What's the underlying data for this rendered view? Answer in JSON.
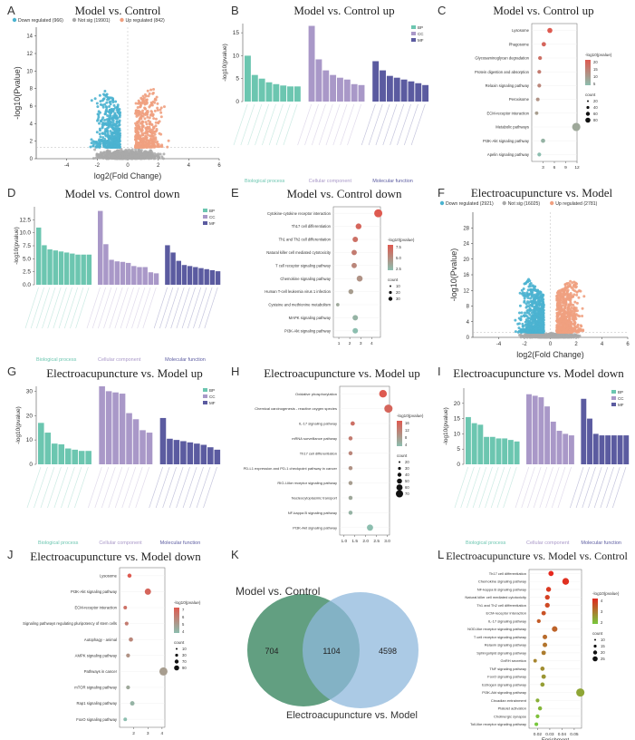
{
  "panels": {
    "A": {
      "letter": "A",
      "title": "Model vs. Control"
    },
    "B": {
      "letter": "B",
      "title": "Model vs. Control up"
    },
    "C": {
      "letter": "C",
      "title": "Model vs. Control up"
    },
    "D": {
      "letter": "D",
      "title": "Model vs. Control down"
    },
    "E": {
      "letter": "E",
      "title": "Model vs. Control down"
    },
    "F": {
      "letter": "F",
      "title": "Electroacupuncture vs. Model"
    },
    "G": {
      "letter": "G",
      "title": "Electroacupuncture vs. Model up"
    },
    "H": {
      "letter": "H",
      "title": "Electroacupuncture vs. Model up"
    },
    "I": {
      "letter": "I",
      "title": "Electroacupuncture vs. Model down"
    },
    "J": {
      "letter": "J",
      "title": "Electroacupuncture vs. Model down"
    },
    "K": {
      "letter": "K",
      "title": ""
    },
    "L": {
      "letter": "L",
      "title": "Electroacupuncture vs. Model vs. Control"
    }
  },
  "colors": {
    "down": "#4bb3d0",
    "notsig": "#a9a9a9",
    "up": "#f0a080",
    "bp": "#6cc6b0",
    "cc": "#a998c8",
    "mf": "#5b5ba0",
    "venn_left": "#5a9a7a",
    "venn_right": "#8fb8dc"
  },
  "chart_data": [
    {
      "id": "A",
      "type": "scatter",
      "subtype": "volcano",
      "legend": [
        "Down regulated (966)",
        "Not sig (19901)",
        "Up regulated (842)"
      ],
      "xlabel": "log2(Fold Change)",
      "ylabel": "-log10(Pvalue)",
      "xlim": [
        -6,
        6
      ],
      "ylim": [
        0,
        15
      ],
      "xticks": [
        "-4",
        "-2",
        "0",
        "2",
        "4",
        "6"
      ],
      "yticks": [
        "0",
        "2",
        "4",
        "6",
        "8",
        "10",
        "12",
        "14"
      ]
    },
    {
      "id": "B",
      "type": "bar",
      "ylabel": "-log10(pvalue)",
      "ylim": [
        0,
        17
      ],
      "yticks": [
        "0",
        "5",
        "10",
        "15"
      ],
      "legend": [
        "BP",
        "CC",
        "MF"
      ],
      "groups": [
        "Biological process",
        "Cellular component",
        "Molecular function"
      ],
      "series": [
        {
          "name": "BP",
          "values": [
            10,
            5.8,
            5,
            4.2,
            3.8,
            3.5,
            3.3,
            3.3
          ]
        },
        {
          "name": "CC",
          "values": [
            16.5,
            9.2,
            6.8,
            5.8,
            5.2,
            4.8,
            3.8,
            3.6
          ]
        },
        {
          "name": "MF",
          "values": [
            8.8,
            6.8,
            5.6,
            5.2,
            4.8,
            4.4,
            4,
            3.6
          ]
        }
      ]
    },
    {
      "id": "C",
      "type": "scatter",
      "subtype": "bubble",
      "xticks": [
        "3",
        "6",
        "9",
        "12"
      ],
      "xlim": [
        0,
        12
      ],
      "legend_title": "-log10(pvalue)",
      "legend_ticks": [
        "20",
        "15",
        "10",
        "5"
      ],
      "count_title": "count",
      "count_ticks": [
        "20",
        "40",
        "60",
        "80"
      ],
      "terms": [
        "Lysosome",
        "Phagosome",
        "Glycosaminoglycan degradation",
        "Protein digestion and absorption",
        "Relaxin signaling pathway",
        "Peroxisome",
        "ECM-receptor interaction",
        "Metabolic pathways",
        "PI3K-Akt signaling pathway",
        "Apelin signaling pathway"
      ],
      "x": [
        4.8,
        3.2,
        2.2,
        2,
        2,
        1.6,
        1.3,
        11.8,
        3,
        2
      ]
    },
    {
      "id": "D",
      "type": "bar",
      "ylabel": "-log10(pvalue)",
      "ylim": [
        0,
        15
      ],
      "yticks": [
        "0.0",
        "2.5",
        "5.0",
        "7.5",
        "10.0",
        "12.5"
      ],
      "legend": [
        "BP",
        "CC",
        "MF"
      ],
      "groups": [
        "Biological process",
        "Cellular component",
        "Molecular function"
      ],
      "series": [
        {
          "name": "BP",
          "values": [
            11,
            7.6,
            6.8,
            6.6,
            6.4,
            6.2,
            6,
            5.8,
            5.8,
            5.8
          ]
        },
        {
          "name": "CC",
          "values": [
            14.2,
            7.8,
            4.8,
            4.5,
            4.4,
            4.2,
            3.6,
            3.4,
            3.4,
            2.4,
            2.2
          ]
        },
        {
          "name": "MF",
          "values": [
            7.6,
            6.2,
            4.6,
            3.8,
            3.6,
            3.4,
            3.2,
            3,
            2.8,
            2.6
          ]
        }
      ]
    },
    {
      "id": "E",
      "type": "scatter",
      "subtype": "bubble",
      "xticks": [
        "1",
        "2",
        "3",
        "4"
      ],
      "xlim": [
        0.5,
        4.8
      ],
      "legend_title": "-log10(pvalue)",
      "legend_ticks": [
        "7.5",
        "5.0",
        "2.5"
      ],
      "count_title": "count",
      "count_ticks": [
        "10",
        "20",
        "30"
      ],
      "terms": [
        "Cytokine-cytokine receptor interaction",
        "Th17 cell differentiation",
        "Th1 and Th2 cell differentiation",
        "Natural killer cell mediated cytotoxicity",
        "T cell receptor signaling pathway",
        "Chemokine signaling pathway",
        "Human T-cell leukemia virus 1 infection",
        "Cysteine and methionine metabolism",
        "MAPK signaling pathway",
        "PI3K-Akt signaling pathway"
      ],
      "x": [
        4.6,
        2.8,
        2.5,
        2.4,
        2.4,
        2.9,
        2.1,
        0.9,
        2.5,
        2.5
      ]
    },
    {
      "id": "F",
      "type": "scatter",
      "subtype": "volcano",
      "legend": [
        "Down regulated (2921)",
        "Not sig (16025)",
        "Up regulated (2781)"
      ],
      "xlabel": "log2(Fold Change)",
      "ylabel": "-log10(Pvalue)",
      "xlim": [
        -6,
        6
      ],
      "ylim": [
        0,
        32
      ],
      "xticks": [
        "-4",
        "-2",
        "0",
        "2",
        "4",
        "6"
      ],
      "yticks": [
        "0",
        "4",
        "8",
        "12",
        "16",
        "20",
        "24",
        "28"
      ]
    },
    {
      "id": "G",
      "type": "bar",
      "ylabel": "-log10(pvalue)",
      "ylim": [
        0,
        32
      ],
      "yticks": [
        "0",
        "10",
        "20",
        "30"
      ],
      "legend": [
        "BP",
        "CC",
        "MF"
      ],
      "groups": [
        "Biological process",
        "Cellular component",
        "Molecular function"
      ],
      "series": [
        {
          "name": "BP",
          "values": [
            17,
            13,
            8.5,
            8.2,
            6.5,
            6,
            5.5,
            5.5
          ]
        },
        {
          "name": "CC",
          "values": [
            32,
            30,
            29.5,
            29,
            21,
            18.5,
            14,
            13
          ]
        },
        {
          "name": "MF",
          "values": [
            19,
            10.5,
            10,
            9.5,
            9,
            8.5,
            8,
            7,
            6
          ]
        }
      ]
    },
    {
      "id": "H",
      "type": "scatter",
      "subtype": "bubble",
      "xticks": [
        "1.0",
        "1.5",
        "2.0",
        "2.5",
        "3.0"
      ],
      "xlim": [
        0.8,
        3.1
      ],
      "legend_title": "-log10(pvalue)",
      "legend_ticks": [
        "16",
        "12",
        "8",
        "4"
      ],
      "count_title": "count",
      "count_ticks": [
        "20",
        "30",
        "40",
        "50",
        "60",
        "70"
      ],
      "terms": [
        "Oxidative phosphorylation",
        "Chemical carcinogenesis - reactive oxygen species",
        "IL-17 signaling pathway",
        "mRNA surveillance pathway",
        "Th17 cell differentiation",
        "PD-L1 expression and PD-1 checkpoint pathway in cancer",
        "RIG-I-like receptor signaling pathway",
        "Nucleocytoplasmic transport",
        "NF-kappa B signaling pathway",
        "PI3K-Akt signaling pathway"
      ],
      "x": [
        2.8,
        3.05,
        1.4,
        1.3,
        1.3,
        1.3,
        1.3,
        1.3,
        1.3,
        2.2
      ]
    },
    {
      "id": "I",
      "type": "bar",
      "ylabel": "-log10(pvalue)",
      "ylim": [
        0,
        25
      ],
      "yticks": [
        "0",
        "5",
        "10",
        "15",
        "20"
      ],
      "legend": [
        "BP",
        "CC",
        "MF"
      ],
      "groups": [
        "Biological process",
        "Cellular component",
        "Molecular function"
      ],
      "series": [
        {
          "name": "BP",
          "values": [
            15.5,
            13.5,
            13,
            9,
            9,
            8.5,
            8.5,
            8,
            7.5
          ]
        },
        {
          "name": "CC",
          "values": [
            23,
            22.5,
            22,
            19,
            14,
            11,
            10,
            9.5
          ]
        },
        {
          "name": "MF",
          "values": [
            21.5,
            15,
            10,
            9.5,
            9.5,
            9.5,
            9.5,
            9.5
          ]
        }
      ]
    },
    {
      "id": "J",
      "type": "scatter",
      "subtype": "bubble",
      "xticks": [
        "2",
        "3",
        "4"
      ],
      "xlim": [
        1,
        4.2
      ],
      "legend_title": "-log10(pvalue)",
      "legend_ticks": [
        "7",
        "6",
        "5",
        "4"
      ],
      "count_title": "count",
      "count_ticks": [
        "10",
        "30",
        "70",
        "90"
      ],
      "terms": [
        "Lysosome",
        "PI3K-Akt signaling pathway",
        "ECM-receptor interaction",
        "Signaling pathways regulating pluripotency of stem cells",
        "Autophagy - animal",
        "AMPK signaling pathway",
        "Pathways in cancer",
        "mTOR signaling pathway",
        "Rap1 signaling pathway",
        "FoxO signaling pathway"
      ],
      "x": [
        1.7,
        3,
        1.4,
        1.5,
        1.8,
        1.6,
        4.1,
        1.6,
        1.9,
        1.4
      ]
    },
    {
      "id": "K",
      "type": "venn",
      "sets": [
        "Model vs. Control",
        "Electroacupuncture vs. Model"
      ],
      "left_only": "704",
      "intersection": "1104",
      "right_only": "4598"
    },
    {
      "id": "L",
      "type": "scatter",
      "subtype": "bubble",
      "xlabel": "Enrichment",
      "xticks": [
        "0.02",
        "0.03",
        "0.04",
        "0.05"
      ],
      "xlim": [
        0.013,
        0.056
      ],
      "legend_title": "-log10(pvalue)",
      "legend_ticks": [
        "4",
        "3",
        "2"
      ],
      "count_title": "count",
      "count_ticks": [
        "10",
        "15",
        "20",
        "25"
      ],
      "terms": [
        "Th17 cell differentiation",
        "Chemokine signaling pathway",
        "NF-kappa B signaling pathway",
        "Natural killer cell mediated cytotoxicity",
        "Th1 and Th2 cell differentiation",
        "ECM-receptor interaction",
        "IL-17 signaling pathway",
        "NOD-like receptor signaling pathway",
        "T cell receptor signaling pathway",
        "Relaxin signaling pathway",
        "Sphingolipid signaling pathway",
        "GnRH secretion",
        "TNF signaling pathway",
        "FoxO signaling pathway",
        "Estrogen signaling pathway",
        "PI3K-Akt signaling pathway",
        "Circadian entrainment",
        "Platelet activation",
        "Cholinergic synapse",
        "Toll-like receptor signaling pathway"
      ],
      "x": [
        0.031,
        0.043,
        0.029,
        0.028,
        0.028,
        0.025,
        0.021,
        0.034,
        0.026,
        0.026,
        0.025,
        0.018,
        0.024,
        0.025,
        0.024,
        0.055,
        0.02,
        0.022,
        0.02,
        0.019
      ]
    }
  ]
}
